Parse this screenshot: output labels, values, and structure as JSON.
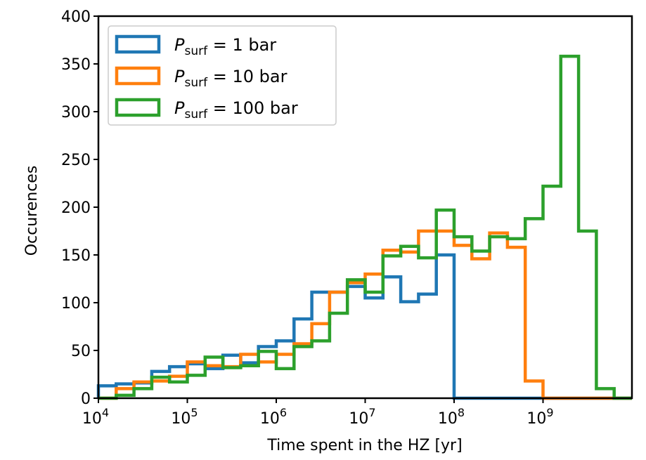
{
  "chart_data": {
    "type": "histogram-step",
    "title": "",
    "xlabel": "Time spent in the HZ [yr]",
    "ylabel": "Occurences",
    "xscale": "log",
    "xlim": [
      10000,
      10000000000
    ],
    "ylim": [
      0,
      400
    ],
    "grid": false,
    "legend_position": "top-left",
    "x_tick_base": "10",
    "x_tick_exponents": [
      "4",
      "5",
      "6",
      "7",
      "8",
      "9"
    ],
    "y_ticks": [
      "0",
      "50",
      "100",
      "150",
      "200",
      "250",
      "300",
      "350",
      "400"
    ],
    "bin_edges_log10_yr": [
      4.0,
      4.2,
      4.4,
      4.6,
      4.8,
      5.0,
      5.2,
      5.4,
      5.6,
      5.8,
      6.0,
      6.2,
      6.4,
      6.6,
      6.8,
      7.0,
      7.2,
      7.4,
      7.6,
      7.8,
      8.0,
      8.2,
      8.4,
      8.6,
      8.8,
      9.0,
      9.2,
      9.4,
      9.6,
      9.8,
      10.0
    ],
    "series": [
      {
        "name_symbol": "P",
        "name_sub": "surf",
        "name_value": "= 1 bar",
        "color": "#1f77b4",
        "counts": [
          13,
          15,
          16,
          28,
          33,
          36,
          31,
          45,
          37,
          54,
          60,
          83,
          111,
          111,
          117,
          105,
          127,
          101,
          109,
          150,
          0,
          0,
          0,
          0,
          0,
          0,
          0,
          0,
          0,
          0
        ]
      },
      {
        "name_symbol": "P",
        "name_sub": "surf",
        "name_value": "= 10 bar",
        "color": "#ff7f0e",
        "counts": [
          0,
          10,
          17,
          18,
          23,
          38,
          34,
          33,
          46,
          38,
          46,
          57,
          78,
          111,
          121,
          130,
          155,
          153,
          175,
          175,
          160,
          146,
          173,
          158,
          18,
          0,
          0,
          0,
          0,
          0
        ]
      },
      {
        "name_symbol": "P",
        "name_sub": "surf",
        "name_value": "= 100 bar",
        "color": "#2ca02c",
        "counts": [
          0,
          3,
          10,
          22,
          17,
          24,
          43,
          32,
          34,
          49,
          31,
          54,
          60,
          89,
          124,
          111,
          149,
          159,
          147,
          197,
          169,
          154,
          169,
          167,
          188,
          222,
          358,
          175,
          10,
          0
        ]
      }
    ]
  }
}
